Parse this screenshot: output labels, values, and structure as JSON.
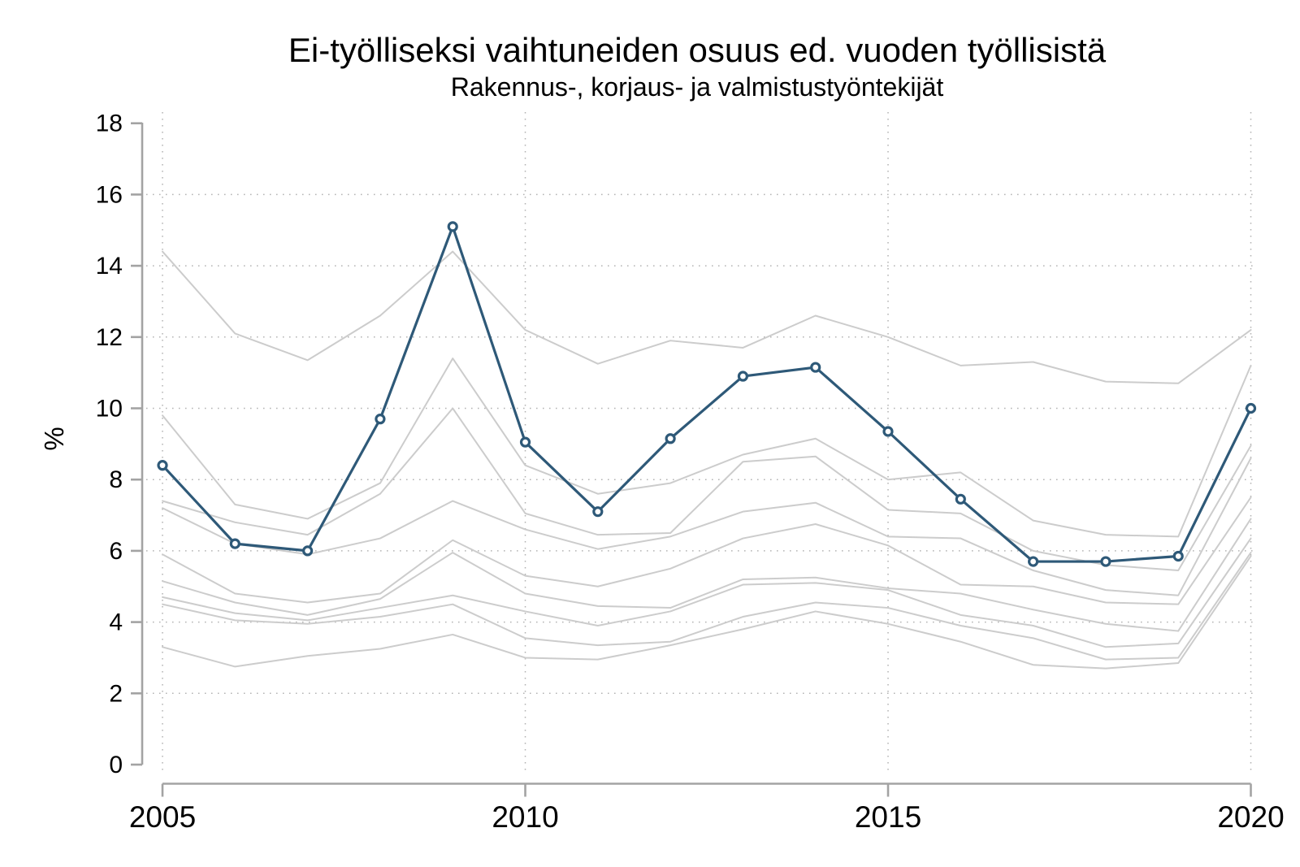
{
  "page": {
    "background_color": "#ffffff",
    "text_color": "#000000",
    "axis_color": "#a3a3a3",
    "grid_color": "#b0b0b0"
  },
  "chart": {
    "title": "Ei-työlliseksi vaihtuneiden osuus ed. vuoden työllisistä",
    "subtitle": "Rakennus-, korjaus- ja valmistustyöntekijät",
    "ylabel": "%"
  },
  "chart_data": {
    "type": "line",
    "title": "Ei-työlliseksi vaihtuneiden osuus ed. vuoden työllisistä",
    "subtitle": "Rakennus-, korjaus- ja valmistustyöntekijät",
    "ylabel": "%",
    "xlabel": "",
    "x": [
      2005,
      2006,
      2007,
      2008,
      2009,
      2010,
      2011,
      2012,
      2013,
      2014,
      2015,
      2016,
      2017,
      2018,
      2019,
      2020
    ],
    "x_ticks": [
      2005,
      2010,
      2015,
      2020
    ],
    "y_ticks": [
      0,
      2,
      4,
      6,
      8,
      10,
      12,
      14,
      16,
      18
    ],
    "ylim": [
      0,
      18
    ],
    "xlim": [
      2005,
      2020
    ],
    "grid": {
      "style": "dotted",
      "horizontal_at": [
        2,
        4,
        6,
        8,
        10,
        12,
        14,
        16
      ],
      "vertical_at": [
        2005,
        2010,
        2015,
        2020
      ]
    },
    "legend": "none",
    "main_series": {
      "label": "Rakennus-, korjaus- ja valmistustyöntekijät",
      "color": "#2e5978",
      "marker": "open-circle",
      "line_width": 3.2,
      "values": [
        8.4,
        6.2,
        6.0,
        9.7,
        15.1,
        9.05,
        7.1,
        9.15,
        10.9,
        11.15,
        9.35,
        7.45,
        5.7,
        5.7,
        5.85,
        10.0
      ]
    },
    "background_series": {
      "color": "#cccccc",
      "line_width": 2,
      "lines": [
        [
          14.4,
          12.1,
          11.35,
          12.6,
          14.4,
          12.2,
          11.25,
          11.9,
          11.7,
          12.6,
          12.0,
          11.2,
          11.3,
          10.75,
          10.7,
          12.2
        ],
        [
          9.8,
          7.3,
          6.9,
          7.9,
          11.4,
          8.4,
          7.6,
          7.9,
          8.7,
          9.15,
          8.0,
          8.2,
          6.85,
          6.45,
          6.4,
          11.2
        ],
        [
          7.4,
          6.8,
          6.45,
          7.6,
          10.0,
          7.05,
          6.45,
          6.5,
          8.5,
          8.65,
          7.15,
          7.05,
          6.0,
          5.6,
          5.45,
          8.95
        ],
        [
          7.2,
          6.2,
          5.9,
          6.35,
          7.4,
          6.6,
          6.05,
          6.4,
          7.1,
          7.35,
          6.4,
          6.35,
          5.45,
          4.9,
          4.75,
          8.6
        ],
        [
          5.9,
          4.8,
          4.55,
          4.8,
          6.3,
          5.3,
          5.0,
          5.5,
          6.35,
          6.75,
          6.15,
          5.05,
          5.0,
          4.55,
          4.5,
          7.5
        ],
        [
          5.15,
          4.55,
          4.2,
          4.65,
          5.95,
          4.8,
          4.45,
          4.4,
          5.2,
          5.25,
          4.95,
          4.8,
          4.35,
          3.95,
          3.75,
          6.9
        ],
        [
          4.7,
          4.25,
          4.05,
          4.4,
          4.75,
          4.3,
          3.9,
          4.3,
          5.05,
          5.1,
          4.9,
          4.2,
          3.9,
          3.3,
          3.4,
          6.35
        ],
        [
          4.5,
          4.05,
          3.95,
          4.15,
          4.5,
          3.55,
          3.35,
          3.45,
          4.15,
          4.55,
          4.4,
          3.9,
          3.55,
          2.95,
          3.0,
          5.95
        ],
        [
          3.3,
          2.75,
          3.05,
          3.25,
          3.65,
          3.0,
          2.95,
          3.35,
          3.8,
          4.3,
          3.95,
          3.45,
          2.8,
          2.7,
          2.85,
          5.85
        ]
      ]
    }
  }
}
